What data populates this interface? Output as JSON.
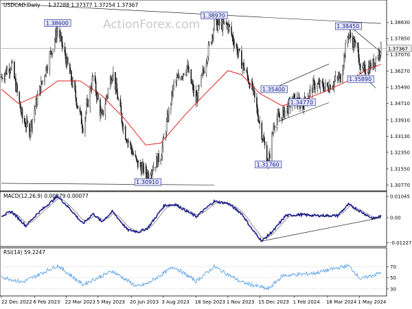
{
  "chart_data": [
    {
      "type": "candlestick",
      "header": {
        "symbol": "USDCAD.Daily",
        "ohlc": "1.37288 1.37377 1.37254 1.37367"
      },
      "watermark": "ActionForex.com",
      "ylim": [
        1.3055,
        1.3925
      ],
      "y_ticks": [
        "1.38630",
        "1.37850",
        "1.37070",
        "1.36270",
        "1.35490",
        "1.34710",
        "1.33910",
        "1.33130",
        "1.32350",
        "1.31550",
        "1.30770"
      ],
      "y_tick_values": [
        1.3863,
        1.3785,
        1.3707,
        1.3627,
        1.3549,
        1.3471,
        1.3391,
        1.3313,
        1.3235,
        1.3155,
        1.3077
      ],
      "current_price_label": "1.37367",
      "current_price": 1.37367,
      "x_tick_labels": [
        "22 Dec 2022",
        "6 Feb 2023",
        "22 Mar 2023",
        "5 May 2023",
        "20 Jun 2023",
        "3 Aug 2023",
        "18 Sep 2023",
        "1 Nov 2023",
        "15 Dec 2023",
        "1 Feb 2024",
        "18 Mar 2024",
        "1 May 2024"
      ],
      "annotations": [
        {
          "text": "1.38600",
          "date": "2023-03-10",
          "value": 1.386
        },
        {
          "text": "1.38970",
          "date": "2023-10-13",
          "value": 1.3897
        },
        {
          "text": "1.38450",
          "date": "2024-04-16",
          "value": 1.3845
        },
        {
          "text": "1.35400",
          "date": "2024-01-04",
          "value": 1.354
        },
        {
          "text": "1.35890",
          "date": "2024-05-03",
          "value": 1.3589
        },
        {
          "text": "1.34770",
          "date": "2024-02-12",
          "value": 1.3477
        },
        {
          "text": "1.31760",
          "date": "2023-12-27",
          "value": 1.3176
        },
        {
          "text": "1.30910",
          "date": "2023-07-13",
          "value": 1.3091
        }
      ],
      "price_path": [
        {
          "date": "2022-12-22",
          "value": 1.36
        },
        {
          "date": "2023-01-05",
          "value": 1.366
        },
        {
          "date": "2023-01-20",
          "value": 1.34
        },
        {
          "date": "2023-01-30",
          "value": 1.334
        },
        {
          "date": "2023-02-10",
          "value": 1.35
        },
        {
          "date": "2023-03-10",
          "value": 1.383
        },
        {
          "date": "2023-03-28",
          "value": 1.36
        },
        {
          "date": "2023-04-14",
          "value": 1.336
        },
        {
          "date": "2023-04-28",
          "value": 1.36
        },
        {
          "date": "2023-05-10",
          "value": 1.34
        },
        {
          "date": "2023-05-25",
          "value": 1.363
        },
        {
          "date": "2023-06-10",
          "value": 1.334
        },
        {
          "date": "2023-06-28",
          "value": 1.318
        },
        {
          "date": "2023-07-13",
          "value": 1.313
        },
        {
          "date": "2023-07-31",
          "value": 1.322
        },
        {
          "date": "2023-08-18",
          "value": 1.356
        },
        {
          "date": "2023-09-05",
          "value": 1.365
        },
        {
          "date": "2023-09-18",
          "value": 1.348
        },
        {
          "date": "2023-10-13",
          "value": 1.385
        },
        {
          "date": "2023-11-01",
          "value": 1.385
        },
        {
          "date": "2023-11-20",
          "value": 1.367
        },
        {
          "date": "2023-12-05",
          "value": 1.354
        },
        {
          "date": "2023-12-27",
          "value": 1.318
        },
        {
          "date": "2024-01-04",
          "value": 1.338
        },
        {
          "date": "2024-01-16",
          "value": 1.342
        },
        {
          "date": "2024-01-31",
          "value": 1.349
        },
        {
          "date": "2024-02-12",
          "value": 1.346
        },
        {
          "date": "2024-02-28",
          "value": 1.356
        },
        {
          "date": "2024-03-18",
          "value": 1.355
        },
        {
          "date": "2024-04-05",
          "value": 1.36
        },
        {
          "date": "2024-04-16",
          "value": 1.381
        },
        {
          "date": "2024-04-30",
          "value": 1.372
        },
        {
          "date": "2024-05-03",
          "value": 1.362
        },
        {
          "date": "2024-05-20",
          "value": 1.366
        },
        {
          "date": "2024-05-31",
          "value": 1.3737
        }
      ],
      "ma_path": [
        {
          "date": "2022-12-22",
          "value": 1.354
        },
        {
          "date": "2023-01-15",
          "value": 1.347
        },
        {
          "date": "2023-02-10",
          "value": 1.351
        },
        {
          "date": "2023-03-10",
          "value": 1.358
        },
        {
          "date": "2023-04-10",
          "value": 1.358
        },
        {
          "date": "2023-05-10",
          "value": 1.351
        },
        {
          "date": "2023-06-10",
          "value": 1.34
        },
        {
          "date": "2023-07-10",
          "value": 1.327
        },
        {
          "date": "2023-07-31",
          "value": 1.328
        },
        {
          "date": "2023-09-01",
          "value": 1.341
        },
        {
          "date": "2023-10-01",
          "value": 1.352
        },
        {
          "date": "2023-11-01",
          "value": 1.363
        },
        {
          "date": "2023-11-20",
          "value": 1.361
        },
        {
          "date": "2023-12-15",
          "value": 1.352
        },
        {
          "date": "2024-01-15",
          "value": 1.346
        },
        {
          "date": "2024-02-15",
          "value": 1.349
        },
        {
          "date": "2024-03-15",
          "value": 1.353
        },
        {
          "date": "2024-04-15",
          "value": 1.358
        },
        {
          "date": "2024-05-15",
          "value": 1.364
        },
        {
          "date": "2024-05-31",
          "value": 1.366
        }
      ],
      "trendlines": [
        {
          "from": {
            "date": "2022-12-22",
            "value": 1.3955
          },
          "to": {
            "date": "2024-05-31",
            "value": 1.3858
          }
        },
        {
          "from": {
            "date": "2022-12-22",
            "value": 1.3085
          },
          "to": {
            "date": "2023-10-13",
            "value": 1.3077
          }
        },
        {
          "from": {
            "date": "2024-01-10",
            "value": 1.3555
          },
          "to": {
            "date": "2024-03-20",
            "value": 1.3662
          }
        },
        {
          "from": {
            "date": "2024-01-10",
            "value": 1.3385
          },
          "to": {
            "date": "2024-03-20",
            "value": 1.3475
          }
        },
        {
          "from": {
            "date": "2024-04-16",
            "value": 1.385
          },
          "to": {
            "date": "2024-05-31",
            "value": 1.372
          }
        },
        {
          "from": {
            "date": "2024-04-30",
            "value": 1.3625
          },
          "to": {
            "date": "2024-05-24",
            "value": 1.3545
          }
        }
      ],
      "x_range": [
        "2022-12-22",
        "2024-06-06"
      ]
    },
    {
      "type": "line",
      "title": "MACD(12,26,9) 0.00079 0.00077",
      "ylim": [
        -0.0135,
        0.0118
      ],
      "y_ticks": [
        "0.01045",
        "0.00",
        "-0.012276"
      ],
      "y_tick_values": [
        0.01045,
        0.0,
        -0.012276
      ],
      "series": [
        {
          "role": "macd",
          "points": [
            {
              "date": "2022-12-22",
              "value": 0.001
            },
            {
              "date": "2023-01-05",
              "value": 0.003
            },
            {
              "date": "2023-01-25",
              "value": -0.004
            },
            {
              "date": "2023-02-10",
              "value": 0.002
            },
            {
              "date": "2023-03-10",
              "value": 0.0105
            },
            {
              "date": "2023-03-28",
              "value": 0.004
            },
            {
              "date": "2023-04-14",
              "value": -0.003
            },
            {
              "date": "2023-04-28",
              "value": 0.002
            },
            {
              "date": "2023-05-10",
              "value": -0.002
            },
            {
              "date": "2023-05-25",
              "value": 0.003
            },
            {
              "date": "2023-06-15",
              "value": -0.006
            },
            {
              "date": "2023-07-01",
              "value": -0.007
            },
            {
              "date": "2023-07-13",
              "value": -0.005
            },
            {
              "date": "2023-08-05",
              "value": 0.006
            },
            {
              "date": "2023-08-20",
              "value": 0.0065
            },
            {
              "date": "2023-09-18",
              "value": 0.0005
            },
            {
              "date": "2023-10-13",
              "value": 0.008
            },
            {
              "date": "2023-11-01",
              "value": 0.007
            },
            {
              "date": "2023-11-20",
              "value": 0.002
            },
            {
              "date": "2023-12-05",
              "value": -0.006
            },
            {
              "date": "2023-12-18",
              "value": -0.0115
            },
            {
              "date": "2024-01-04",
              "value": -0.006
            },
            {
              "date": "2024-01-20",
              "value": 0.001
            },
            {
              "date": "2024-02-10",
              "value": 0.0015
            },
            {
              "date": "2024-03-01",
              "value": 0.001
            },
            {
              "date": "2024-04-01",
              "value": 0.001
            },
            {
              "date": "2024-04-16",
              "value": 0.0065
            },
            {
              "date": "2024-05-03",
              "value": 0.003
            },
            {
              "date": "2024-05-20",
              "value": -0.0005
            },
            {
              "date": "2024-05-31",
              "value": 0.0008
            }
          ]
        }
      ],
      "trendlines": [
        {
          "from": {
            "date": "2023-12-18",
            "value": -0.0115
          },
          "to": {
            "date": "2024-05-31",
            "value": 0.0
          }
        }
      ],
      "x_range": [
        "2022-12-22",
        "2024-06-06"
      ]
    },
    {
      "type": "line",
      "title": "RSI(14) 59.2247",
      "ylim": [
        20,
        90
      ],
      "y_ticks": [
        "70",
        "50",
        "30"
      ],
      "y_tick_values": [
        70,
        50,
        30
      ],
      "series": [
        {
          "role": "rsi",
          "points": [
            {
              "date": "2022-12-22",
              "value": 52
            },
            {
              "date": "2023-01-20",
              "value": 42
            },
            {
              "date": "2023-03-10",
              "value": 72
            },
            {
              "date": "2023-04-14",
              "value": 38
            },
            {
              "date": "2023-05-25",
              "value": 62
            },
            {
              "date": "2023-06-28",
              "value": 34
            },
            {
              "date": "2023-07-13",
              "value": 40
            },
            {
              "date": "2023-08-18",
              "value": 70
            },
            {
              "date": "2023-09-18",
              "value": 44
            },
            {
              "date": "2023-10-13",
              "value": 70
            },
            {
              "date": "2023-11-20",
              "value": 42
            },
            {
              "date": "2023-12-27",
              "value": 30
            },
            {
              "date": "2024-01-16",
              "value": 54
            },
            {
              "date": "2024-02-28",
              "value": 58
            },
            {
              "date": "2024-04-16",
              "value": 72
            },
            {
              "date": "2024-05-03",
              "value": 48
            },
            {
              "date": "2024-05-31",
              "value": 59
            }
          ]
        }
      ],
      "x_range": [
        "2022-12-22",
        "2024-06-06"
      ]
    }
  ],
  "colors": {
    "price": "#1a1a1a",
    "ma": "#e02020",
    "macd": "#1a1a8a",
    "signal": "#666666",
    "rsi": "#5aa0e8",
    "label_bg": "#e8e8f8",
    "label_border": "#0a1a8a",
    "current_price_bg": "#f0f0f0"
  }
}
